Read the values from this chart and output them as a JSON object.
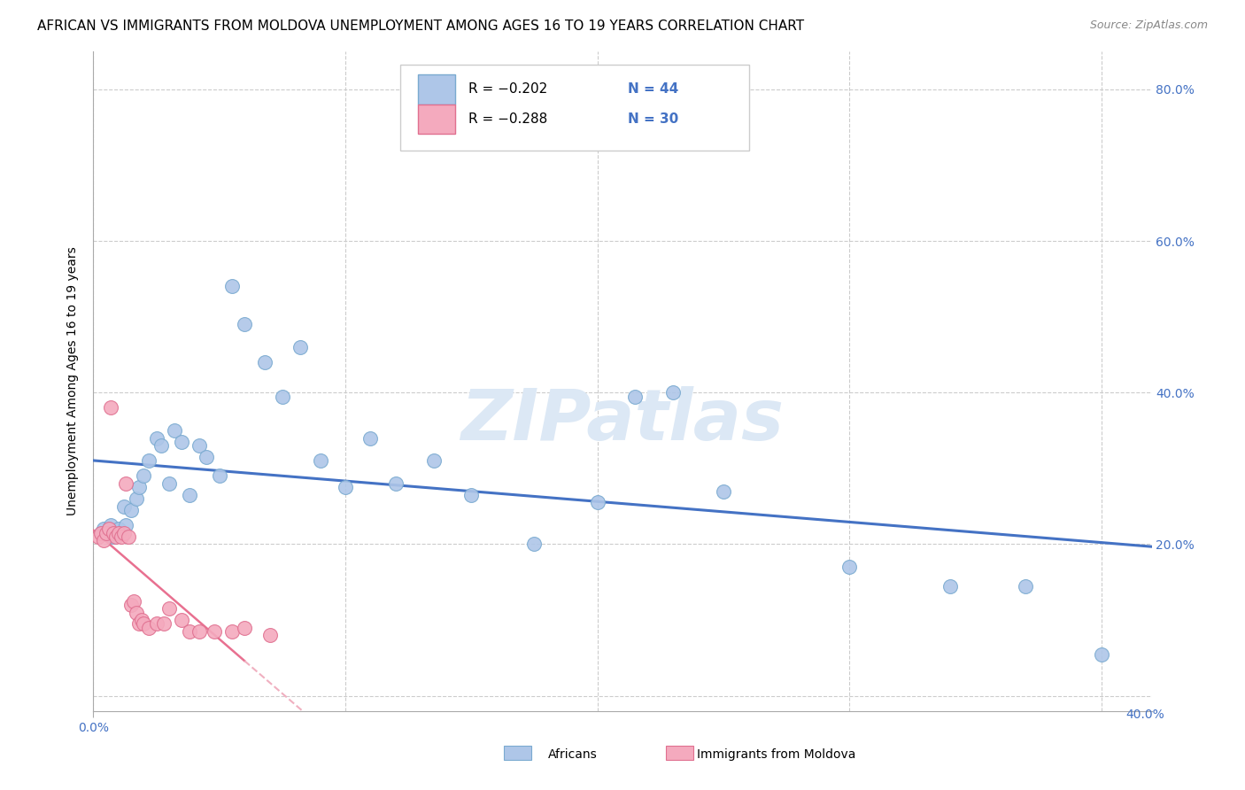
{
  "title": "AFRICAN VS IMMIGRANTS FROM MOLDOVA UNEMPLOYMENT AMONG AGES 16 TO 19 YEARS CORRELATION CHART",
  "source": "Source: ZipAtlas.com",
  "xlim": [
    0.0,
    0.42
  ],
  "ylim": [
    -0.02,
    0.85
  ],
  "watermark": "ZIPatlas",
  "africans_x": [
    0.003,
    0.004,
    0.005,
    0.006,
    0.007,
    0.008,
    0.009,
    0.01,
    0.012,
    0.013,
    0.015,
    0.017,
    0.018,
    0.02,
    0.022,
    0.025,
    0.027,
    0.03,
    0.032,
    0.035,
    0.038,
    0.042,
    0.045,
    0.05,
    0.055,
    0.06,
    0.068,
    0.075,
    0.082,
    0.09,
    0.1,
    0.11,
    0.12,
    0.135,
    0.15,
    0.175,
    0.2,
    0.215,
    0.23,
    0.25,
    0.3,
    0.34,
    0.37,
    0.4
  ],
  "africans_y": [
    0.215,
    0.22,
    0.215,
    0.22,
    0.225,
    0.21,
    0.215,
    0.22,
    0.25,
    0.225,
    0.245,
    0.26,
    0.275,
    0.29,
    0.31,
    0.34,
    0.33,
    0.28,
    0.35,
    0.335,
    0.265,
    0.33,
    0.315,
    0.29,
    0.54,
    0.49,
    0.44,
    0.395,
    0.46,
    0.31,
    0.275,
    0.34,
    0.28,
    0.31,
    0.265,
    0.2,
    0.255,
    0.395,
    0.4,
    0.27,
    0.17,
    0.145,
    0.145,
    0.055
  ],
  "moldova_x": [
    0.002,
    0.003,
    0.004,
    0.005,
    0.006,
    0.007,
    0.008,
    0.009,
    0.01,
    0.011,
    0.012,
    0.013,
    0.014,
    0.015,
    0.016,
    0.017,
    0.018,
    0.019,
    0.02,
    0.022,
    0.025,
    0.028,
    0.03,
    0.035,
    0.038,
    0.042,
    0.048,
    0.055,
    0.06,
    0.07
  ],
  "moldova_y": [
    0.21,
    0.215,
    0.205,
    0.215,
    0.22,
    0.38,
    0.215,
    0.21,
    0.215,
    0.21,
    0.215,
    0.28,
    0.21,
    0.12,
    0.125,
    0.11,
    0.095,
    0.1,
    0.095,
    0.09,
    0.095,
    0.095,
    0.115,
    0.1,
    0.085,
    0.085,
    0.085,
    0.085,
    0.09,
    0.08
  ],
  "trend_color_africans": "#4472c4",
  "trend_color_moldova_solid": "#e87090",
  "trend_color_moldova_dashed": "#f0b0c0",
  "dot_color_africans": "#aec6e8",
  "dot_color_moldova": "#f4aabe",
  "dot_edge_africans": "#7aaad0",
  "dot_edge_moldova": "#e07090",
  "grid_color": "#cccccc",
  "background_color": "#ffffff",
  "title_fontsize": 11,
  "source_fontsize": 9,
  "axis_tick_fontsize": 10,
  "watermark_fontsize": 58,
  "watermark_color": "#dce8f5",
  "ylabel": "Unemployment Among Ages 16 to 19 years",
  "dot_size": 130,
  "legend_R1": "R = –0.202",
  "legend_N1": "N = 44",
  "legend_R2": "R = –0.288",
  "legend_N2": "N = 30",
  "legend_label1": "Africans",
  "legend_label2": "Immigrants from Moldova"
}
